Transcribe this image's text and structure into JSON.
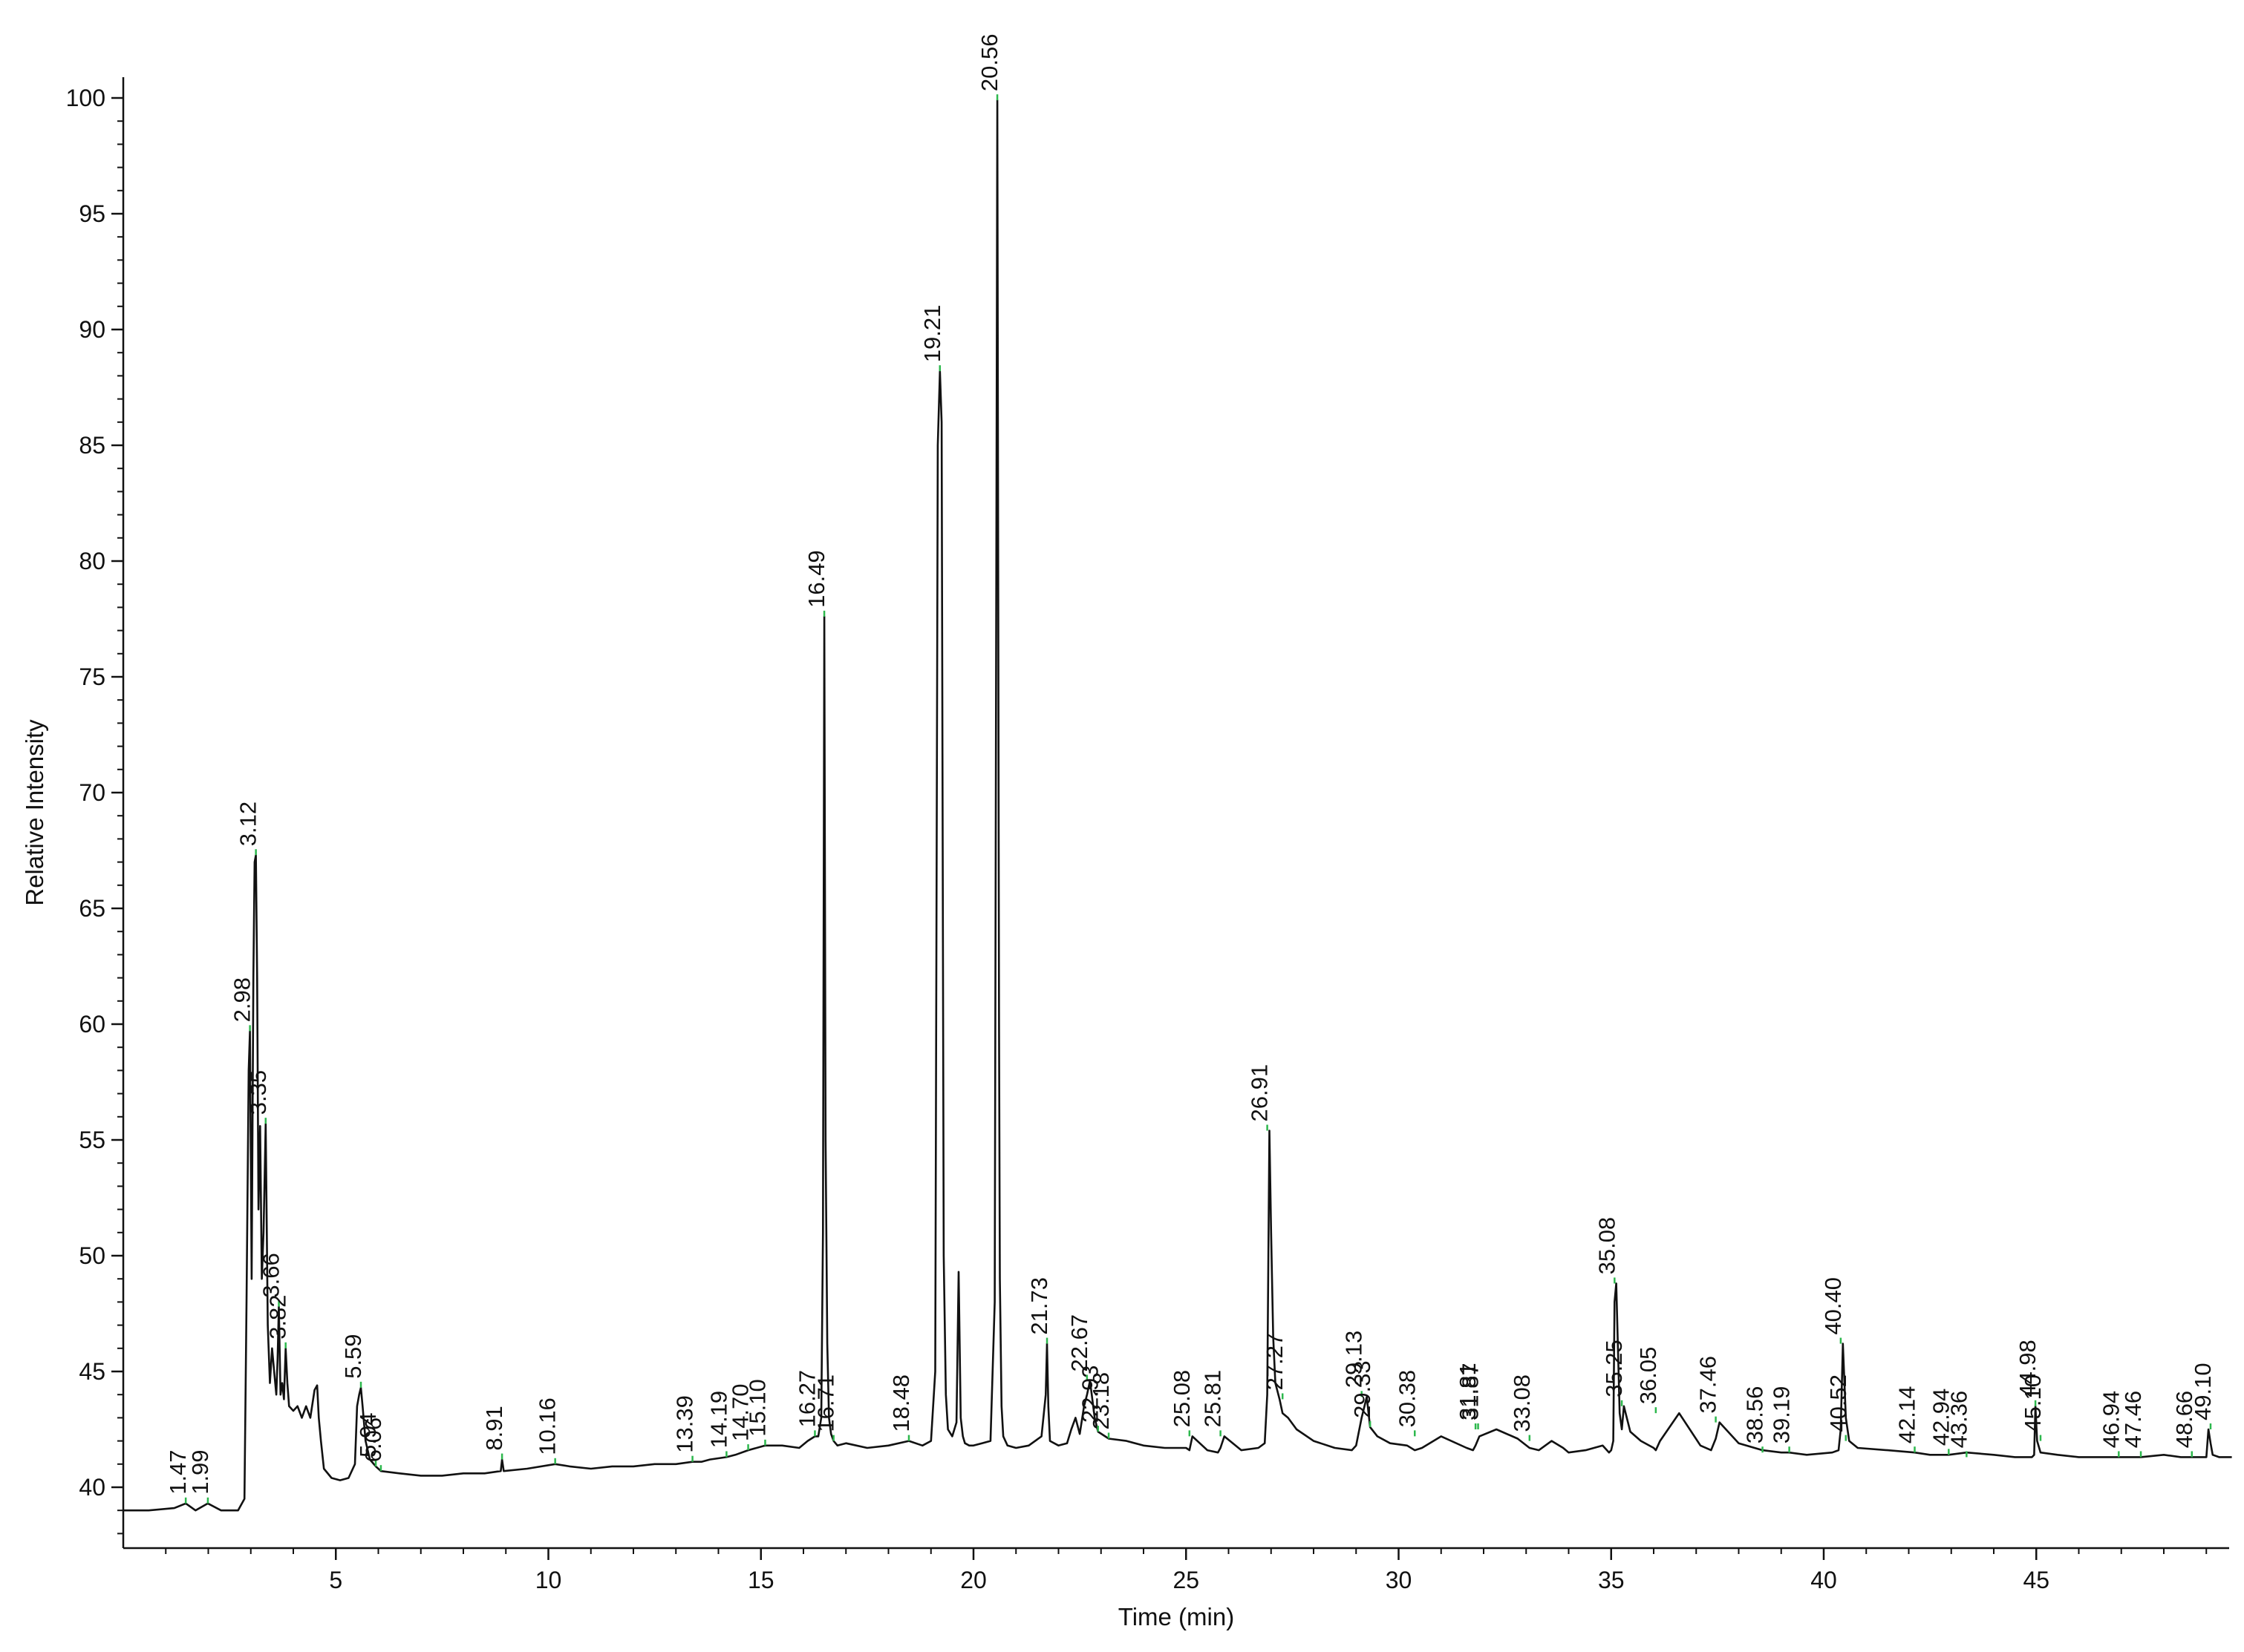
{
  "chart_data": {
    "type": "line",
    "title": "",
    "xlabel": "Time (min)",
    "ylabel": "Relative Intensity",
    "xlim": [
      0,
      49.6
    ],
    "ylim": [
      37,
      101
    ],
    "x_ticks": [
      5,
      10,
      15,
      20,
      25,
      30,
      35,
      40,
      45
    ],
    "x_tick_labels": [
      "5",
      "10",
      "15",
      "20",
      "25",
      "30",
      "35",
      "40",
      "45"
    ],
    "y_ticks": [
      40,
      45,
      50,
      55,
      60,
      65,
      70,
      75,
      80,
      85,
      90,
      95,
      100
    ],
    "y_tick_labels": [
      "40",
      "45",
      "50",
      "55",
      "60",
      "65",
      "70",
      "75",
      "80",
      "85",
      "90",
      "95",
      "100"
    ],
    "grid": false,
    "colors": {
      "trace": "#111111",
      "axis": "#111111",
      "leader": "#2db84d"
    },
    "series": [
      {
        "x": [
          0,
          0.6,
          1.2,
          1.47,
          1.7,
          1.99,
          2.3,
          2.7,
          2.85,
          2.9,
          2.95,
          2.98,
          3.02,
          3.06,
          3.09,
          3.12,
          3.15,
          3.18,
          3.22,
          3.26,
          3.3,
          3.35,
          3.4,
          3.45,
          3.5,
          3.55,
          3.6,
          3.63,
          3.66,
          3.7,
          3.74,
          3.78,
          3.82,
          3.86,
          3.9,
          4.0,
          4.1,
          4.2,
          4.3,
          4.4,
          4.5,
          4.56,
          4.6,
          4.65,
          4.72,
          4.9,
          5.1,
          5.3,
          5.45,
          5.5,
          5.55,
          5.59,
          5.63,
          5.7,
          5.8,
          5.94,
          6.06,
          6.5,
          7.0,
          7.5,
          8.0,
          8.5,
          8.88,
          8.91,
          8.95,
          9.5,
          10.16,
          10.5,
          11.0,
          11.5,
          12.0,
          12.5,
          13.0,
          13.39,
          13.6,
          13.8,
          14.19,
          14.4,
          14.7,
          15.1,
          15.5,
          15.9,
          16.1,
          16.27,
          16.35,
          16.42,
          16.46,
          16.49,
          16.52,
          16.56,
          16.6,
          16.65,
          16.71,
          16.8,
          17.0,
          17.5,
          18.0,
          18.48,
          18.8,
          19.0,
          19.1,
          19.16,
          19.21,
          19.25,
          19.3,
          19.35,
          19.4,
          19.5,
          19.6,
          19.65,
          19.7,
          19.75,
          19.8,
          19.9,
          20.0,
          20.2,
          20.4,
          20.5,
          20.56,
          20.6,
          20.62,
          20.66,
          20.7,
          20.8,
          21.0,
          21.3,
          21.6,
          21.7,
          21.73,
          21.76,
          21.8,
          22.0,
          22.2,
          22.3,
          22.4,
          22.5,
          22.6,
          22.67,
          22.74,
          22.85,
          22.93,
          23.18,
          23.6,
          24.0,
          24.5,
          25.0,
          25.08,
          25.15,
          25.5,
          25.75,
          25.81,
          25.9,
          26.3,
          26.7,
          26.85,
          26.91,
          26.96,
          27.0,
          27.05,
          27.1,
          27.2,
          27.27,
          27.4,
          27.6,
          28.0,
          28.5,
          28.9,
          29.0,
          29.13,
          29.25,
          29.33,
          29.5,
          29.8,
          30.2,
          30.38,
          30.55,
          31.0,
          31.6,
          31.75,
          31.81,
          31.9,
          32.3,
          32.8,
          33.08,
          33.3,
          33.6,
          33.87,
          34.0,
          34.4,
          34.8,
          34.95,
          35.0,
          35.05,
          35.08,
          35.12,
          35.16,
          35.2,
          35.25,
          35.3,
          35.45,
          35.7,
          36.0,
          36.05,
          36.15,
          36.6,
          37.1,
          37.35,
          37.46,
          37.55,
          38.0,
          38.56,
          39.0,
          39.19,
          39.6,
          40.2,
          40.35,
          40.4,
          40.45,
          40.52,
          40.6,
          40.8,
          41.5,
          42.14,
          42.5,
          42.94,
          43.36,
          44.0,
          44.5,
          44.9,
          44.95,
          44.98,
          45.02,
          45.1,
          45.5,
          46.0,
          46.5,
          46.94,
          47.46,
          48.0,
          48.4,
          48.66,
          49.0,
          49.05,
          49.1,
          49.15,
          49.3,
          49.6
        ],
        "values": [
          39.0,
          39.0,
          39.1,
          39.3,
          39.0,
          39.3,
          39.0,
          39.0,
          39.5,
          48.0,
          58.0,
          59.7,
          49.0,
          62.0,
          67.0,
          67.3,
          62.0,
          52.0,
          55.6,
          49.0,
          51.0,
          55.7,
          47.0,
          44.5,
          46.0,
          45.0,
          44.0,
          45.5,
          47.8,
          44.0,
          44.5,
          43.8,
          46.0,
          44.5,
          43.5,
          43.3,
          43.5,
          43.0,
          43.5,
          43.0,
          44.2,
          44.4,
          43.0,
          42.0,
          40.8,
          40.4,
          40.3,
          40.4,
          41.0,
          43.5,
          44.0,
          44.3,
          43.5,
          42.0,
          41.2,
          40.9,
          40.7,
          40.6,
          40.5,
          40.5,
          40.6,
          40.6,
          40.7,
          41.2,
          40.7,
          40.8,
          41.0,
          40.9,
          40.8,
          40.9,
          40.9,
          41.0,
          41.0,
          41.1,
          41.1,
          41.2,
          41.3,
          41.4,
          41.6,
          41.8,
          41.8,
          41.7,
          42.0,
          42.2,
          42.2,
          43.0,
          51.0,
          77.6,
          55.0,
          46.2,
          43.0,
          42.3,
          42.0,
          41.8,
          41.9,
          41.7,
          41.8,
          42.0,
          41.8,
          42.0,
          45.0,
          85.0,
          88.2,
          86.0,
          50.0,
          44.0,
          42.5,
          42.2,
          42.8,
          49.3,
          43.0,
          42.2,
          41.9,
          41.8,
          41.8,
          41.9,
          42.0,
          48.0,
          99.9,
          60.0,
          49.0,
          43.5,
          42.2,
          41.8,
          41.7,
          41.8,
          42.2,
          44.0,
          46.2,
          43.5,
          42.0,
          41.8,
          41.9,
          42.5,
          43.0,
          42.3,
          43.5,
          44.0,
          44.6,
          43.0,
          42.4,
          42.1,
          42.0,
          41.8,
          41.7,
          41.7,
          41.6,
          42.2,
          41.6,
          41.5,
          41.7,
          42.2,
          41.6,
          41.7,
          41.9,
          44.0,
          55.4,
          51.0,
          46.5,
          44.5,
          43.8,
          43.2,
          43.0,
          42.5,
          42.0,
          41.7,
          41.6,
          41.8,
          43.0,
          43.9,
          42.6,
          42.2,
          41.9,
          41.8,
          41.6,
          41.7,
          42.2,
          41.7,
          41.6,
          41.8,
          42.2,
          42.5,
          42.1,
          41.7,
          41.6,
          42.0,
          41.7,
          41.5,
          41.6,
          41.8,
          41.5,
          41.6,
          42.0,
          48.0,
          48.8,
          46.0,
          43.2,
          42.5,
          43.5,
          42.4,
          42.0,
          41.7,
          41.6,
          42.0,
          43.2,
          41.8,
          41.6,
          42.1,
          42.8,
          41.9,
          41.6,
          41.5,
          41.5,
          41.4,
          41.5,
          41.6,
          42.5,
          46.2,
          43.0,
          42.0,
          41.7,
          41.6,
          41.5,
          41.4,
          41.4,
          41.5,
          41.4,
          41.3,
          41.3,
          41.4,
          43.5,
          42.0,
          41.5,
          41.4,
          41.3,
          41.3,
          41.3,
          41.3,
          41.4,
          41.3,
          41.3,
          41.3,
          42.5,
          41.9,
          41.4,
          41.3,
          41.3
        ]
      }
    ],
    "annotations": [
      {
        "text": "1.47",
        "x": 1.47,
        "y": 39.3
      },
      {
        "text": "1.99",
        "x": 1.99,
        "y": 39.3
      },
      {
        "text": "2.98",
        "x": 2.98,
        "y": 59.7
      },
      {
        "text": "3.12",
        "x": 3.12,
        "y": 67.3
      },
      {
        "text": "3.35",
        "x": 3.35,
        "y": 55.7
      },
      {
        "text": "3.66",
        "x": 3.66,
        "y": 47.8
      },
      {
        "text": "3.82",
        "x": 3.82,
        "y": 46.0
      },
      {
        "text": "5.59",
        "x": 5.59,
        "y": 44.3
      },
      {
        "text": "5.94",
        "x": 5.94,
        "y": 40.9
      },
      {
        "text": "6.06",
        "x": 6.06,
        "y": 40.7
      },
      {
        "text": "8.91",
        "x": 8.91,
        "y": 41.2
      },
      {
        "text": "10.16",
        "x": 10.16,
        "y": 41.0
      },
      {
        "text": "13.39",
        "x": 13.39,
        "y": 41.1
      },
      {
        "text": "14.19",
        "x": 14.19,
        "y": 41.3
      },
      {
        "text": "14.70",
        "x": 14.7,
        "y": 41.6
      },
      {
        "text": "15.10",
        "x": 15.1,
        "y": 41.8
      },
      {
        "text": "16.27",
        "x": 16.27,
        "y": 42.2
      },
      {
        "text": "16.49",
        "x": 16.49,
        "y": 77.6
      },
      {
        "text": "16.71",
        "x": 16.71,
        "y": 42.0
      },
      {
        "text": "18.48",
        "x": 18.48,
        "y": 42.0
      },
      {
        "text": "19.21",
        "x": 19.21,
        "y": 88.2
      },
      {
        "text": "20.56",
        "x": 20.56,
        "y": 99.9
      },
      {
        "text": "21.73",
        "x": 21.73,
        "y": 46.2
      },
      {
        "text": "22.67",
        "x": 22.67,
        "y": 44.6
      },
      {
        "text": "22.93",
        "x": 22.93,
        "y": 42.4
      },
      {
        "text": "23.18",
        "x": 23.18,
        "y": 42.1
      },
      {
        "text": "25.08",
        "x": 25.08,
        "y": 42.2
      },
      {
        "text": "25.81",
        "x": 25.81,
        "y": 42.2
      },
      {
        "text": "26.91",
        "x": 26.91,
        "y": 55.4
      },
      {
        "text": "27.27",
        "x": 27.27,
        "y": 43.8
      },
      {
        "text": "29.13",
        "x": 29.13,
        "y": 43.9
      },
      {
        "text": "29.33",
        "x": 29.33,
        "y": 42.6
      },
      {
        "text": "30.38",
        "x": 30.38,
        "y": 42.2
      },
      {
        "text": "31.81",
        "x": 31.81,
        "y": 42.5
      },
      {
        "text": "31.87",
        "x": 31.87,
        "y": 42.5
      },
      {
        "text": "33.08",
        "x": 33.08,
        "y": 42.0
      },
      {
        "text": "35.08",
        "x": 35.08,
        "y": 48.8
      },
      {
        "text": "35.25",
        "x": 35.25,
        "y": 43.5
      },
      {
        "text": "36.05",
        "x": 36.05,
        "y": 43.2
      },
      {
        "text": "37.46",
        "x": 37.46,
        "y": 42.8
      },
      {
        "text": "38.56",
        "x": 38.56,
        "y": 41.5
      },
      {
        "text": "39.19",
        "x": 39.19,
        "y": 41.5
      },
      {
        "text": "40.40",
        "x": 40.4,
        "y": 46.2
      },
      {
        "text": "40.52",
        "x": 40.52,
        "y": 42.0
      },
      {
        "text": "42.14",
        "x": 42.14,
        "y": 41.5
      },
      {
        "text": "42.94",
        "x": 42.94,
        "y": 41.4
      },
      {
        "text": "43.36",
        "x": 43.36,
        "y": 41.3
      },
      {
        "text": "44.98",
        "x": 44.98,
        "y": 43.5
      },
      {
        "text": "45.10",
        "x": 45.1,
        "y": 42.0
      },
      {
        "text": "46.94",
        "x": 46.94,
        "y": 41.3
      },
      {
        "text": "47.46",
        "x": 47.46,
        "y": 41.3
      },
      {
        "text": "48.66",
        "x": 48.66,
        "y": 41.3
      },
      {
        "text": "49.10",
        "x": 49.1,
        "y": 42.5
      }
    ]
  }
}
